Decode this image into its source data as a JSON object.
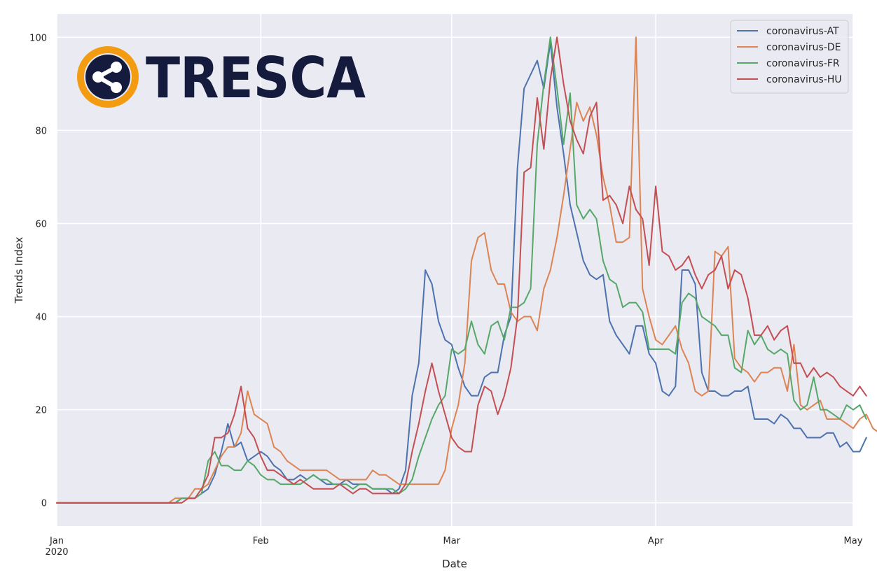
{
  "logo": {
    "text": "TRESCA",
    "accent_color": "#f39c12",
    "text_color": "#141b3c",
    "icon": "share-icon"
  },
  "chart_data": {
    "type": "line",
    "xlabel": "Date",
    "ylabel": "Trends Index",
    "xlim": [
      "2020-01-01",
      "2020-05-01"
    ],
    "ylim": [
      -5,
      105
    ],
    "x_ticks": [
      {
        "date": "2020-01-01",
        "label": "Jan",
        "sublabel": "2020"
      },
      {
        "date": "2020-02-01",
        "label": "Feb"
      },
      {
        "date": "2020-03-01",
        "label": "Mar"
      },
      {
        "date": "2020-04-01",
        "label": "Apr"
      },
      {
        "date": "2020-05-01",
        "label": "May"
      }
    ],
    "y_ticks": [
      0,
      20,
      40,
      60,
      80,
      100
    ],
    "grid": true,
    "background": "#eaeaf2",
    "legend": "top-right",
    "x_start": "2020-01-01",
    "x_step": "1 day",
    "series": [
      {
        "name": "coronavirus-AT",
        "color": "#4c72b0",
        "values": [
          0,
          0,
          0,
          0,
          0,
          0,
          0,
          0,
          0,
          0,
          0,
          0,
          0,
          0,
          0,
          0,
          0,
          0,
          0,
          1,
          1,
          1,
          2,
          3,
          6,
          11,
          17,
          12,
          13,
          9,
          10,
          11,
          10,
          8,
          7,
          5,
          5,
          6,
          5,
          6,
          5,
          4,
          4,
          4,
          5,
          4,
          4,
          4,
          3,
          3,
          3,
          2,
          3,
          7,
          23,
          30,
          50,
          47,
          39,
          35,
          34,
          29,
          25,
          23,
          23,
          27,
          28,
          28,
          36,
          40,
          72,
          89,
          92,
          95,
          89,
          99,
          85,
          75,
          64,
          58,
          52,
          49,
          48,
          49,
          39,
          36,
          34,
          32,
          38,
          38,
          32,
          30,
          24,
          23,
          25,
          50,
          50,
          47,
          28,
          24,
          24,
          23,
          23,
          24,
          24,
          25,
          18,
          18,
          18,
          17,
          19,
          18,
          16,
          16,
          14,
          14,
          14,
          15,
          15,
          12,
          13,
          11,
          11,
          14
        ]
      },
      {
        "name": "coronavirus-DE",
        "color": "#dd8452",
        "values": [
          0,
          0,
          0,
          0,
          0,
          0,
          0,
          0,
          0,
          0,
          0,
          0,
          0,
          0,
          0,
          0,
          0,
          0,
          1,
          1,
          1,
          3,
          3,
          4,
          7,
          10,
          12,
          12,
          15,
          24,
          19,
          18,
          17,
          12,
          11,
          9,
          8,
          7,
          7,
          7,
          7,
          7,
          6,
          5,
          5,
          5,
          5,
          5,
          7,
          6,
          6,
          5,
          4,
          4,
          4,
          4,
          4,
          4,
          4,
          7,
          16,
          21,
          30,
          52,
          57,
          58,
          50,
          47,
          47,
          41,
          39,
          40,
          40,
          37,
          46,
          50,
          57,
          66,
          76,
          86,
          82,
          85,
          79,
          70,
          64,
          56,
          56,
          57,
          100,
          46,
          40,
          35,
          34,
          36,
          38,
          33,
          30,
          24,
          23,
          24,
          54,
          53,
          55,
          31,
          29,
          28,
          26,
          28,
          28,
          29,
          29,
          24,
          34,
          21,
          20,
          21,
          22,
          18,
          18,
          18,
          17,
          16,
          18,
          19,
          16,
          15,
          15,
          14,
          16
        ]
      },
      {
        "name": "coronavirus-FR",
        "color": "#55a868",
        "values": [
          0,
          0,
          0,
          0,
          0,
          0,
          0,
          0,
          0,
          0,
          0,
          0,
          0,
          0,
          0,
          0,
          0,
          0,
          0,
          1,
          1,
          1,
          2,
          9,
          11,
          8,
          8,
          7,
          7,
          9,
          8,
          6,
          5,
          5,
          4,
          4,
          4,
          4,
          5,
          6,
          5,
          5,
          4,
          4,
          4,
          3,
          4,
          4,
          3,
          3,
          3,
          3,
          2,
          3,
          5,
          10,
          14,
          18,
          21,
          23,
          33,
          32,
          33,
          39,
          34,
          32,
          38,
          39,
          35,
          42,
          42,
          43,
          46,
          77,
          90,
          100,
          89,
          77,
          88,
          64,
          61,
          63,
          61,
          52,
          48,
          47,
          42,
          43,
          43,
          41,
          33,
          33,
          33,
          33,
          32,
          43,
          45,
          44,
          40,
          39,
          38,
          36,
          36,
          29,
          28,
          37,
          34,
          36,
          33,
          32,
          33,
          32,
          22,
          20,
          21,
          27,
          20,
          20,
          19,
          18,
          21,
          20,
          21,
          18
        ]
      },
      {
        "name": "coronavirus-HU",
        "color": "#c44e52",
        "values": [
          0,
          0,
          0,
          0,
          0,
          0,
          0,
          0,
          0,
          0,
          0,
          0,
          0,
          0,
          0,
          0,
          0,
          0,
          0,
          0,
          1,
          1,
          3,
          6,
          14,
          14,
          15,
          19,
          25,
          16,
          14,
          10,
          7,
          7,
          6,
          5,
          4,
          5,
          4,
          3,
          3,
          3,
          3,
          4,
          3,
          2,
          3,
          3,
          2,
          2,
          2,
          2,
          2,
          4,
          11,
          17,
          24,
          30,
          24,
          19,
          14,
          12,
          11,
          11,
          21,
          25,
          24,
          19,
          23,
          29,
          40,
          71,
          72,
          87,
          76,
          91,
          100,
          90,
          82,
          78,
          75,
          83,
          86,
          65,
          66,
          64,
          60,
          68,
          63,
          61,
          51,
          68,
          54,
          53,
          50,
          51,
          53,
          49,
          46,
          49,
          50,
          53,
          46,
          50,
          49,
          44,
          36,
          36,
          38,
          35,
          37,
          38,
          30,
          30,
          27,
          29,
          27,
          28,
          27,
          25,
          24,
          23,
          25,
          23
        ]
      }
    ]
  }
}
